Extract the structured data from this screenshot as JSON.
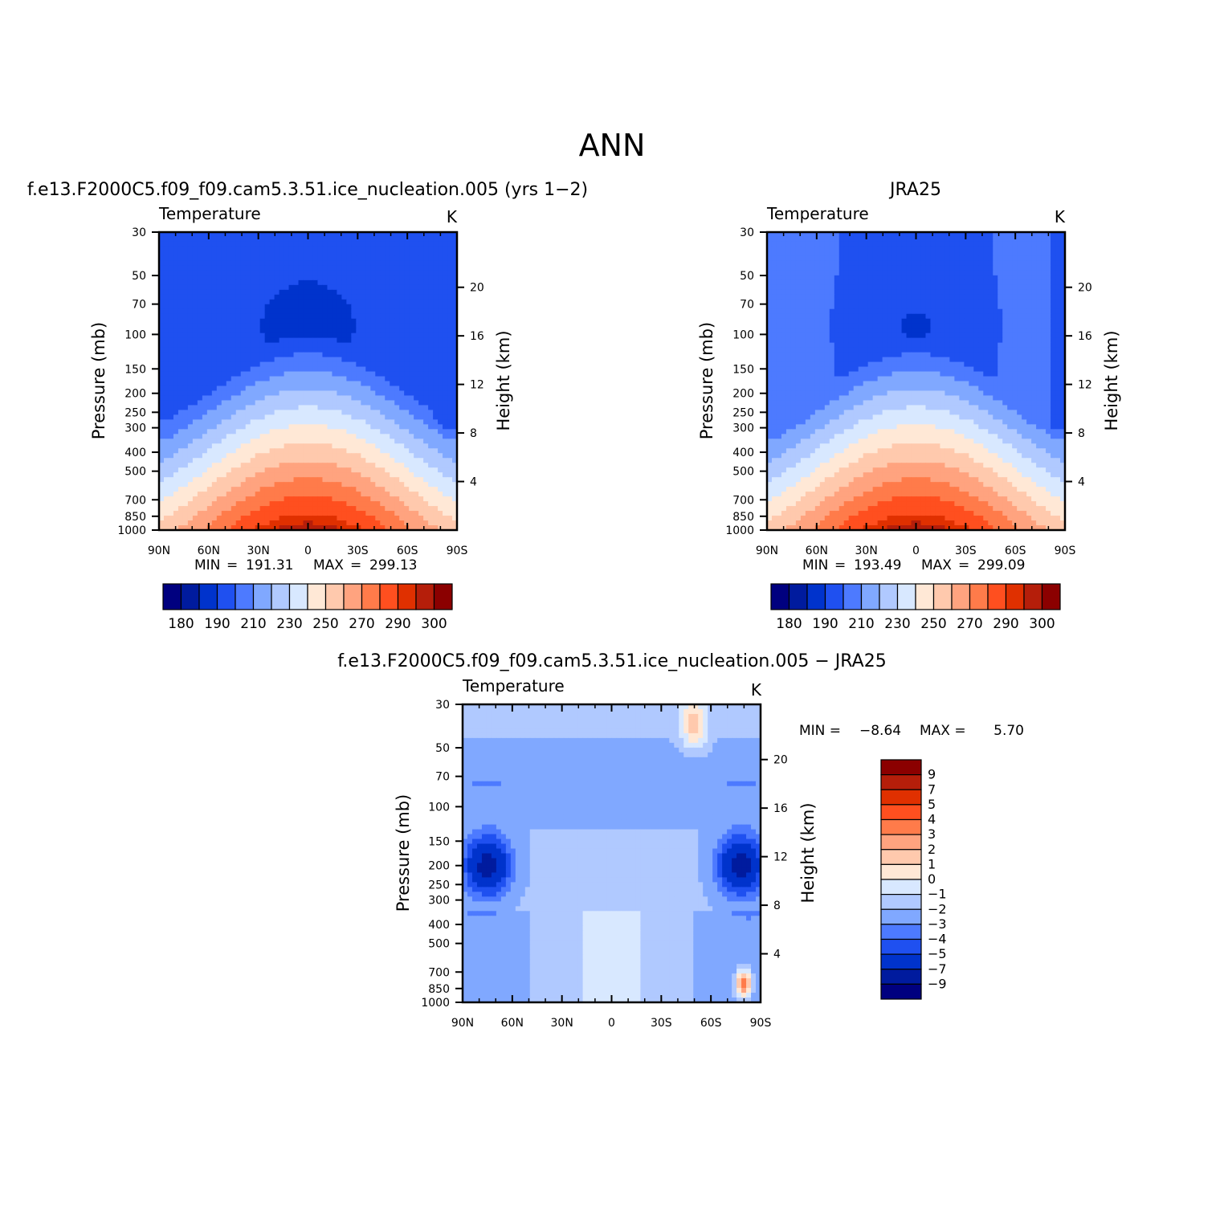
{
  "page": {
    "title": "ANN"
  },
  "palette": {
    "cool_to_warm": [
      "#00007f",
      "#001b9e",
      "#0033cc",
      "#1f50f0",
      "#4d7aff",
      "#80a8ff",
      "#b0c9ff",
      "#d8e8ff",
      "#ffe8d6",
      "#ffc9ad",
      "#ffa37f",
      "#ff7b4a",
      "#ff4f1f",
      "#e03000",
      "#b51e0a",
      "#8b0000"
    ]
  },
  "chart_data": [
    {
      "type": "heatmap",
      "panel_title": "f.e13.F2000C5.f09_f09.cam5.3.51.ice_nucleation.005 (yrs 1−2)",
      "title": "Temperature",
      "units": "K",
      "xlabel": "",
      "ylabel": "Pressure (mb)",
      "ylabel_right": "Height (km)",
      "x_ticks": [
        "90N",
        "60N",
        "30N",
        "0",
        "30S",
        "60S",
        "90S"
      ],
      "y_ticks": [
        "30",
        "50",
        "70",
        "100",
        "150",
        "200",
        "250",
        "300",
        "400",
        "500",
        "700",
        "850",
        "1000"
      ],
      "y_right_ticks": [
        "20",
        "16",
        "12",
        "8",
        "4"
      ],
      "stats": {
        "min_label": "MIN",
        "min": "191.31",
        "max_label": "MAX",
        "max": "299.13"
      },
      "colorbar": {
        "labels": [
          "180",
          "190",
          "210",
          "230",
          "250",
          "270",
          "290",
          "300"
        ],
        "orientation": "horizontal"
      },
      "field": {
        "pole_temp": 198,
        "eq_temp": 191,
        "surface_max": 299.13,
        "south_cold_column": true
      }
    },
    {
      "type": "heatmap",
      "panel_title": "JRA25",
      "title": "Temperature",
      "units": "K",
      "xlabel": "",
      "ylabel": "Pressure (mb)",
      "ylabel_right": "Height (km)",
      "x_ticks": [
        "90N",
        "60N",
        "30N",
        "0",
        "30S",
        "60S",
        "90S"
      ],
      "y_ticks": [
        "30",
        "50",
        "70",
        "100",
        "150",
        "200",
        "250",
        "300",
        "400",
        "500",
        "700",
        "850",
        "1000"
      ],
      "y_right_ticks": [
        "20",
        "16",
        "12",
        "8",
        "4"
      ],
      "stats": {
        "min_label": "MIN",
        "min": "193.49",
        "max_label": "MAX",
        "max": "299.09"
      },
      "colorbar": {
        "labels": [
          "180",
          "190",
          "210",
          "230",
          "250",
          "270",
          "290",
          "300"
        ],
        "orientation": "horizontal"
      },
      "field": {
        "pole_temp": 205,
        "eq_temp": 193.5,
        "surface_max": 299.09,
        "south_cold_column": true
      }
    },
    {
      "type": "heatmap",
      "panel_title": "f.e13.F2000C5.f09_f09.cam5.3.51.ice_nucleation.005 − JRA25",
      "title": "Temperature",
      "units": "K",
      "xlabel": "",
      "ylabel": "Pressure (mb)",
      "ylabel_right": "Height (km)",
      "x_ticks": [
        "90N",
        "60N",
        "30N",
        "0",
        "30S",
        "60S",
        "90S"
      ],
      "y_ticks": [
        "30",
        "50",
        "70",
        "100",
        "150",
        "200",
        "250",
        "300",
        "400",
        "500",
        "700",
        "850",
        "1000"
      ],
      "y_right_ticks": [
        "20",
        "16",
        "12",
        "8",
        "4"
      ],
      "stats": {
        "min_label": "MIN =",
        "min": "−8.64",
        "max_label": "MAX =",
        "max": "5.70"
      },
      "colorbar": {
        "labels": [
          "9",
          "7",
          "5",
          "4",
          "3",
          "2",
          "1",
          "0",
          "−1",
          "−2",
          "−3",
          "−4",
          "−5",
          "−7",
          "−9"
        ],
        "orientation": "vertical"
      },
      "field": {
        "min": -8.64,
        "max": 5.7
      }
    }
  ]
}
